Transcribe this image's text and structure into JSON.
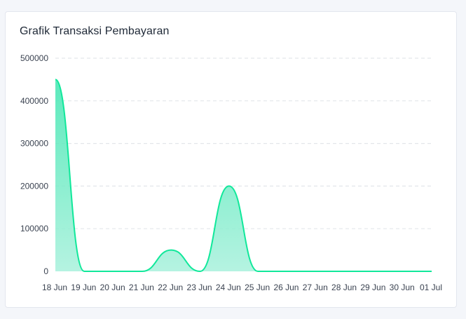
{
  "card": {
    "title": "Grafik Transaksi Pembayaran"
  },
  "chart_data": {
    "type": "area",
    "title": "Grafik Transaksi Pembayaran",
    "xlabel": "",
    "ylabel": "",
    "categories": [
      "18 Jun",
      "19 Jun",
      "20 Jun",
      "21 Jun",
      "22 Jun",
      "23 Jun",
      "24 Jun",
      "25 Jun",
      "26 Jun",
      "27 Jun",
      "28 Jun",
      "29 Jun",
      "30 Jun",
      "01 Jul"
    ],
    "values": [
      450000,
      0,
      0,
      0,
      50000,
      0,
      200000,
      0,
      0,
      0,
      0,
      0,
      0,
      0
    ],
    "ylim": [
      0,
      500000
    ],
    "yticks": [
      "500000",
      "400000",
      "300000",
      "200000",
      "100000",
      "0"
    ],
    "grid": true,
    "legend": "none",
    "colors": {
      "line": "#10e89a",
      "fill_top": "#3fe6b0",
      "fill_bottom": "#a8f1dc",
      "grid": "#e3e6ea"
    }
  }
}
